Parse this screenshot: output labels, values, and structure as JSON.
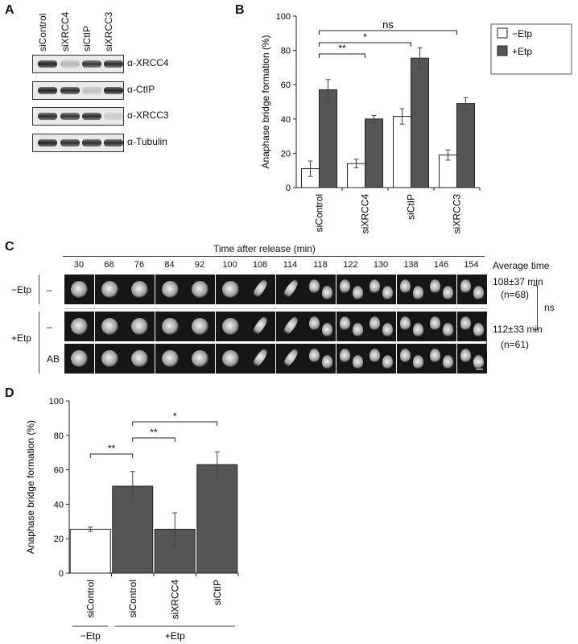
{
  "panelA": {
    "letter": "A",
    "lanes": [
      "siControl",
      "siXRCC4",
      "siCtIP",
      "siXRCC3"
    ],
    "blots": [
      {
        "antibody": "α-XRCC4",
        "intensities": [
          1.0,
          0.25,
          0.9,
          0.95
        ]
      },
      {
        "antibody": "α-CtIP",
        "intensities": [
          1.0,
          0.95,
          0.2,
          1.0
        ]
      },
      {
        "antibody": "α-XRCC3",
        "intensities": [
          0.95,
          0.9,
          0.95,
          0.15
        ]
      },
      {
        "antibody": "α-Tubulin",
        "intensities": [
          1.0,
          0.95,
          0.95,
          0.95
        ]
      }
    ]
  },
  "panelB": {
    "letter": "B",
    "chart_data": {
      "type": "bar",
      "categories": [
        "siControl",
        "siXRCC4",
        "siCtIP",
        "siXRCC3"
      ],
      "series": [
        {
          "name": "−Etp",
          "color": "#ffffff",
          "values": [
            11,
            14,
            41.5,
            19
          ],
          "errors": [
            4.5,
            2.5,
            4.5,
            3
          ]
        },
        {
          "name": "+Etp",
          "color": "#555555",
          "values": [
            57,
            40,
            75.5,
            49
          ],
          "errors": [
            6,
            2,
            6,
            3.5
          ]
        }
      ],
      "ylabel": "Anaphase bridge formation (%)",
      "ylim": [
        0,
        100
      ],
      "yticks": [
        0,
        20,
        40,
        60,
        80,
        100
      ],
      "legend": "right",
      "significance": [
        {
          "label": "**",
          "from": "siControl",
          "to": "siXRCC4"
        },
        {
          "label": "*",
          "from": "siControl",
          "to": "siCtIP"
        },
        {
          "label": "ns",
          "from": "siControl",
          "to": "siXRCC3"
        }
      ]
    }
  },
  "panelC": {
    "letter": "C",
    "header": "Time after release (min)",
    "average_header": "Average time",
    "timepoints": [
      "30",
      "68",
      "76",
      "84",
      "92",
      "100",
      "108",
      "114",
      "118",
      "122",
      "130",
      "138",
      "146",
      "154"
    ],
    "groups": [
      {
        "label": "−Etp",
        "rows": [
          "–"
        ],
        "average": "108±37 min",
        "n": "(n=68)"
      },
      {
        "label": "+Etp",
        "rows": [
          "–",
          "AB"
        ],
        "average": "112±33 min",
        "n": "(n=61)"
      }
    ],
    "comparison": "ns",
    "scalebar": "5 µm"
  },
  "panelD": {
    "letter": "D",
    "chart_data": {
      "type": "bar",
      "categories": [
        "siControl",
        "siControl",
        "siXRCC4",
        "siCtIP"
      ],
      "values": [
        25.5,
        50.5,
        25.5,
        63
      ],
      "errors": [
        1.2,
        8.5,
        9.5,
        7.5
      ],
      "colors": [
        "#ffffff",
        "#555555",
        "#555555",
        "#555555"
      ],
      "ylabel": "Anaphase bridge formation (%)",
      "ylim": [
        0,
        100
      ],
      "yticks": [
        0,
        20,
        40,
        60,
        80,
        100
      ],
      "groups": [
        {
          "label": "−Etp",
          "bars": [
            0
          ]
        },
        {
          "label": "+Etp",
          "bars": [
            1,
            2,
            3
          ]
        }
      ],
      "significance": [
        {
          "label": "**",
          "from": 0,
          "to": 1
        },
        {
          "label": "**",
          "from": 1,
          "to": 2
        },
        {
          "label": "*",
          "from": 1,
          "to": 3
        }
      ]
    }
  }
}
